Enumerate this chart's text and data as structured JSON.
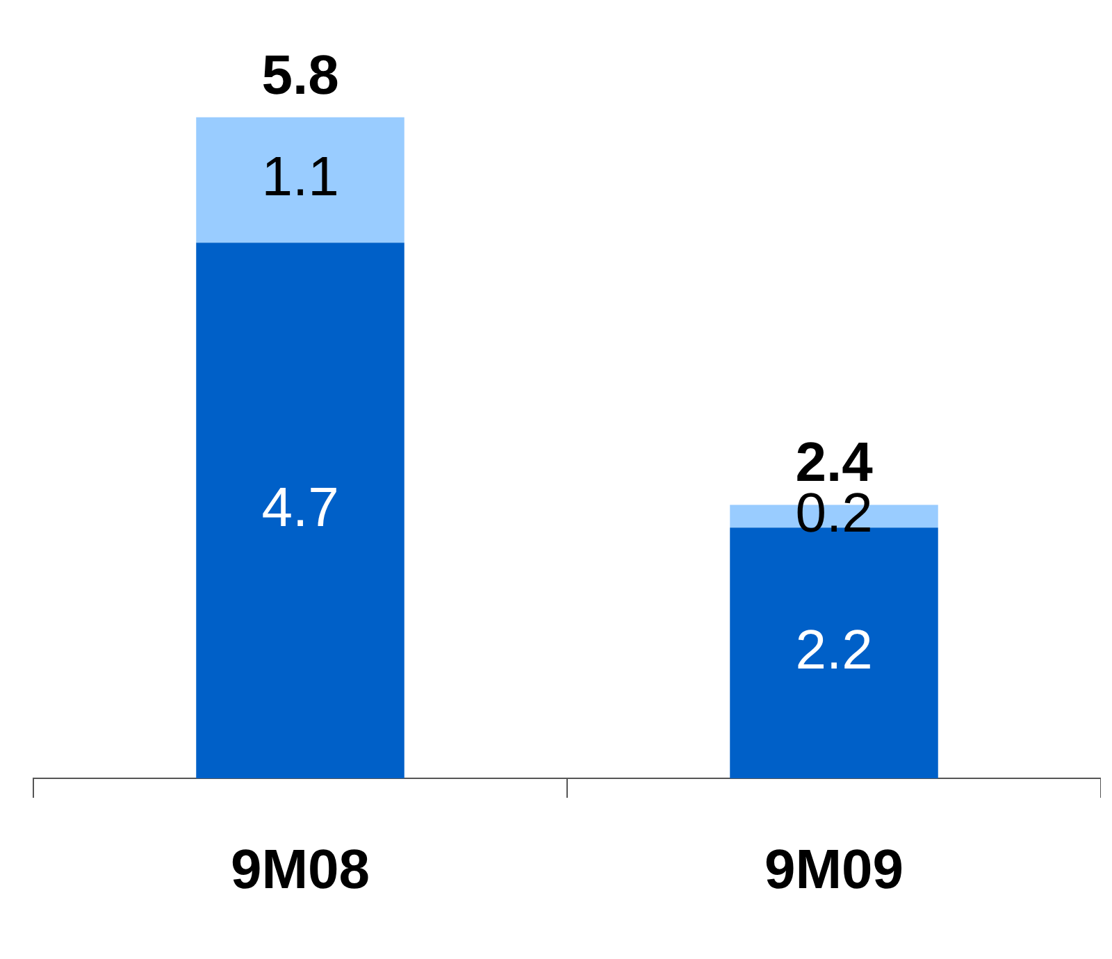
{
  "chart_data": {
    "type": "bar",
    "stacked": true,
    "categories": [
      "9M08",
      "9M09"
    ],
    "series": [
      {
        "color": "#0060c8",
        "values": [
          4.7,
          2.2
        ]
      },
      {
        "color": "#99ccff",
        "values": [
          1.1,
          0.2
        ]
      }
    ],
    "data_labels": true,
    "totals": [
      "5.8",
      "2.4"
    ],
    "legend": false
  }
}
